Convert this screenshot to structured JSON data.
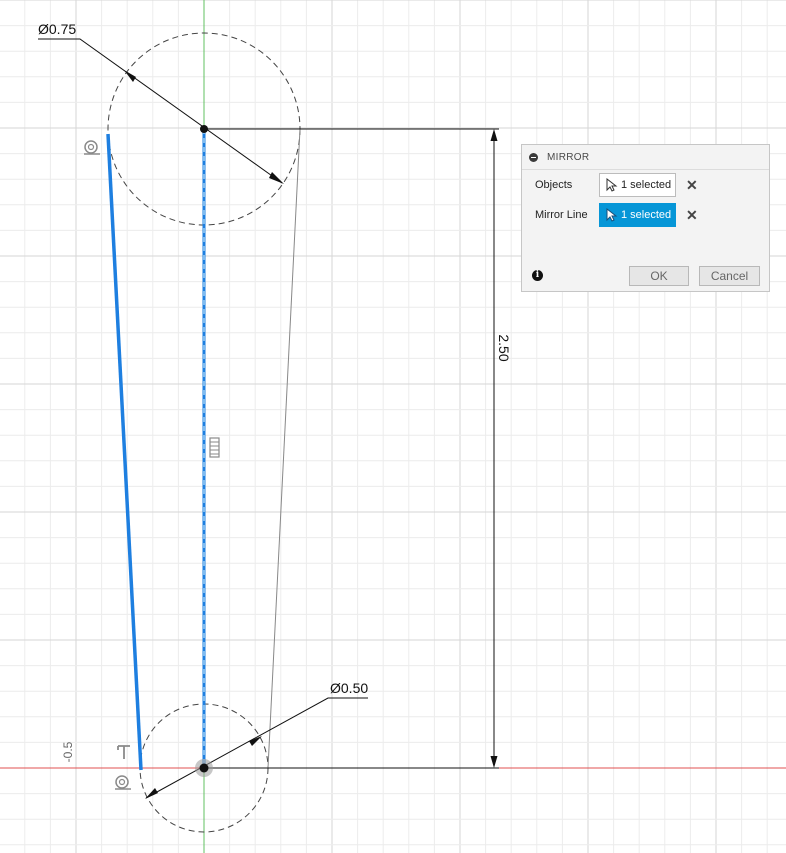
{
  "dimensions": {
    "top_diameter": "Ø0.75",
    "bottom_diameter": "Ø0.50",
    "vertical_distance": "2.50"
  },
  "axis": {
    "x_tick_label": "-0.5"
  },
  "mirror_dialog": {
    "title": "MIRROR",
    "objects_label": "Objects",
    "objects_value": "1 selected",
    "mirror_line_label": "Mirror Line",
    "mirror_line_value": "1 selected",
    "ok_label": "OK",
    "cancel_label": "Cancel",
    "info_symbol": "i"
  },
  "colors": {
    "selection": "#0696d7",
    "sketch_line_selected": "#1e7fe0",
    "x_axis": "#e05050",
    "y_axis": "#60c060",
    "grid_minor": "#ececec",
    "grid_major": "#d6d6d6"
  }
}
